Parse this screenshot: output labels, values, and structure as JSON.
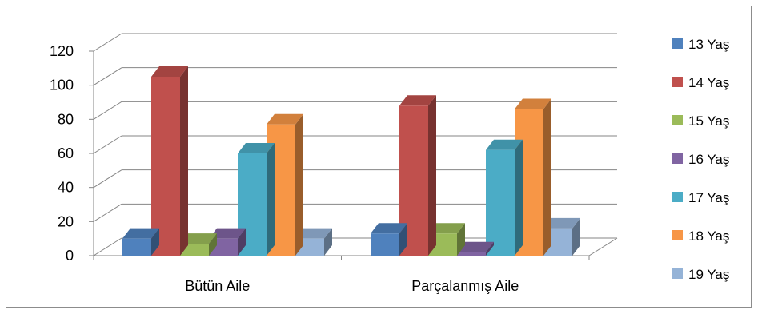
{
  "chart_data": {
    "type": "bar",
    "categories": [
      "Bütün Aile",
      "Parçalanmış Aile"
    ],
    "series": [
      {
        "name": "13 Yaş",
        "values": [
          10,
          13
        ]
      },
      {
        "name": "14 Yaş",
        "values": [
          105,
          88
        ]
      },
      {
        "name": "15 Yaş",
        "values": [
          7,
          13
        ]
      },
      {
        "name": "16 Yaş",
        "values": [
          10,
          2
        ]
      },
      {
        "name": "17 Yaş",
        "values": [
          60,
          62
        ]
      },
      {
        "name": "18 Yaş",
        "values": [
          77,
          86
        ]
      },
      {
        "name": "19 Yaş",
        "values": [
          10,
          16
        ]
      }
    ],
    "ylim": [
      0,
      120
    ],
    "yticks": [
      "0",
      "20",
      "40",
      "60",
      "80",
      "100",
      "120"
    ],
    "colors": [
      "#4f81bd",
      "#c0504d",
      "#9bbb59",
      "#8064a2",
      "#4bacc6",
      "#f79646",
      "#95b3d7"
    ],
    "grid": true,
    "legend": "right",
    "xlabel": "",
    "ylabel": "",
    "title": ""
  }
}
